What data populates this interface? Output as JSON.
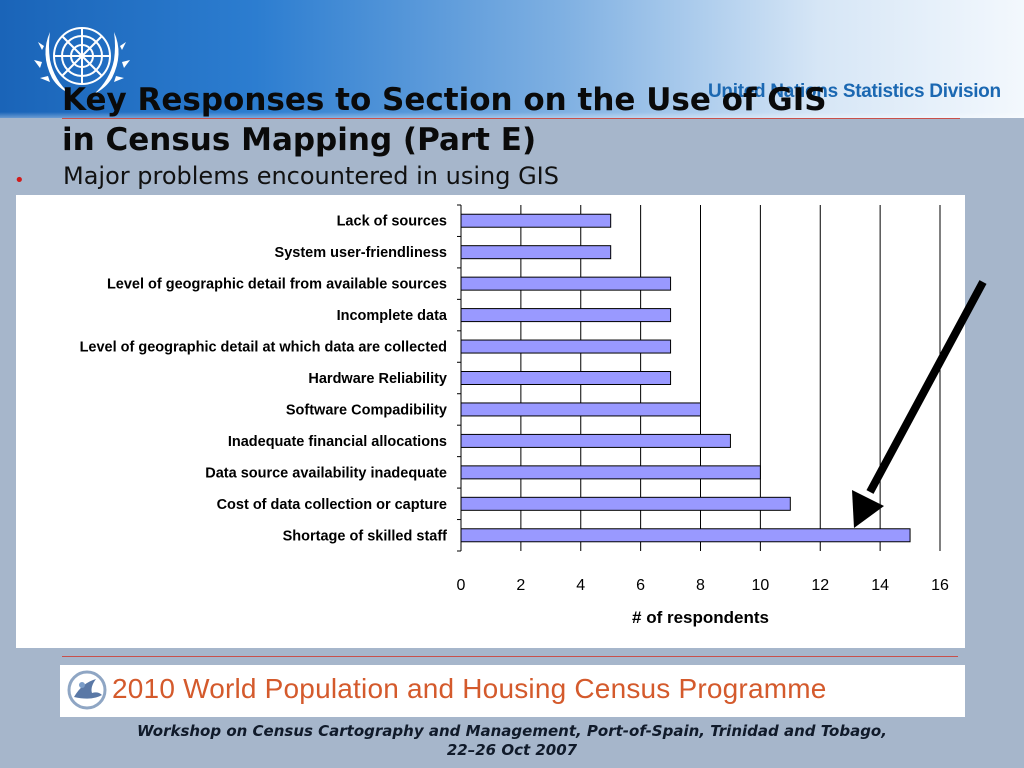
{
  "header": {
    "organization": "United Nations Statistics Division",
    "title_line1": "Key Responses to Section on the Use of GIS",
    "title_line2": "in Census Mapping (Part E)",
    "bullet": "Major problems encountered in using GIS"
  },
  "chart_data": {
    "type": "bar",
    "orientation": "horizontal",
    "categories": [
      "Lack of sources",
      "System user-friendliness",
      "Level of geographic detail from available sources",
      "Incomplete data",
      "Level of geographic detail at which data are collected",
      "Hardware Reliability",
      "Software Compadibility",
      "Inadequate financial allocations",
      "Data source availability inadequate",
      "Cost of data collection or capture",
      "Shortage of skilled staff"
    ],
    "values": [
      5,
      5,
      7,
      7,
      7,
      7,
      8,
      9,
      10,
      11,
      15
    ],
    "xlabel": "# of respondents",
    "ylabel": "",
    "xlim": [
      0,
      16
    ],
    "xticks": [
      0,
      2,
      4,
      6,
      8,
      10,
      12,
      14,
      16
    ],
    "bar_color": "#9999ff",
    "gridlines": true,
    "annotation": "arrow pointing to Shortage of skilled staff"
  },
  "banner": {
    "text": "2010 World Population and Housing Census Programme"
  },
  "footer": {
    "line1": "Workshop on Census Cartography and Management, Port-of-Spain, Trinidad and Tobago,",
    "line2": "22–26 Oct 2007"
  },
  "icons": [
    "un-emblem-icon",
    "census-programme-logo-icon",
    "arrow-icon"
  ]
}
